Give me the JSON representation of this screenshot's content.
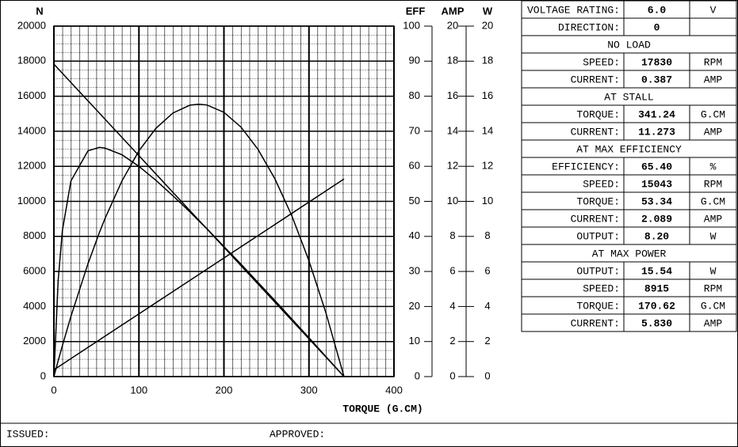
{
  "chart_data": {
    "type": "line",
    "x_label": "TORQUE (G.CM)",
    "y_label": "N",
    "y2_label": "EFF",
    "y3_label": "AMP",
    "y4_label": "W",
    "x": [
      0,
      5,
      10,
      20,
      40,
      53.34,
      60,
      80,
      100,
      120,
      140,
      160,
      170.62,
      180,
      200,
      220,
      240,
      260,
      280,
      300,
      320,
      341.24
    ],
    "xlim": [
      0,
      400
    ],
    "xticks": [
      0,
      100,
      200,
      300,
      400
    ],
    "ylim": [
      0,
      20000
    ],
    "yticks": [
      0,
      2000,
      4000,
      6000,
      8000,
      10000,
      12000,
      14000,
      16000,
      18000,
      20000
    ],
    "y2lim": [
      0,
      100
    ],
    "y2ticks": [
      0,
      10,
      20,
      30,
      40,
      50,
      60,
      70,
      80,
      90,
      100
    ],
    "y3lim": [
      0,
      20
    ],
    "y3ticks": [
      0,
      2,
      4,
      6,
      8,
      10,
      12,
      14,
      16,
      18,
      20
    ],
    "y4lim": [
      0,
      20
    ],
    "y4ticks": [
      0,
      2,
      4,
      6,
      8,
      10,
      12,
      14,
      16,
      18,
      20
    ],
    "grid": true,
    "series": [
      {
        "axis": "y",
        "color": "#000000",
        "values": [
          17830,
          17569,
          17307,
          16785,
          15740,
          15043,
          14695,
          13650,
          12605,
          11560,
          10515,
          9470,
          8915,
          8425,
          7380,
          6335,
          5290,
          4245,
          3200,
          2155,
          1110,
          0
        ]
      },
      {
        "axis": "y2",
        "color": "#000000",
        "values": [
          0,
          27.4,
          41.7,
          55.8,
          64.4,
          65.4,
          65.2,
          63.3,
          60.0,
          56.0,
          51.6,
          47.0,
          44.4,
          42.2,
          37.1,
          32.1,
          26.9,
          21.7,
          16.4,
          11.1,
          5.7,
          0
        ]
      },
      {
        "axis": "y3",
        "color": "#000000",
        "values": [
          0.387,
          0.547,
          0.706,
          1.025,
          1.663,
          2.089,
          2.301,
          2.939,
          3.577,
          4.215,
          4.853,
          5.491,
          5.83,
          6.129,
          6.767,
          7.405,
          8.043,
          8.682,
          9.32,
          9.958,
          10.596,
          11.273
        ]
      },
      {
        "axis": "y4",
        "color": "#000000",
        "values": [
          0,
          0.9,
          1.77,
          3.43,
          6.43,
          8.2,
          9.01,
          11.16,
          12.88,
          14.17,
          15.04,
          15.49,
          15.54,
          15.5,
          15.08,
          14.24,
          12.97,
          11.28,
          9.16,
          6.61,
          3.63,
          0
        ]
      }
    ]
  },
  "table": {
    "rows": [
      [
        "VOLTAGE RATING:",
        "6.0",
        "V"
      ],
      [
        "DIRECTION:",
        "0"
      ],
      [
        "NO LOAD"
      ],
      [
        "SPEED:",
        "17830",
        "RPM"
      ],
      [
        "CURRENT:",
        "0.387",
        "AMP"
      ],
      [
        "AT STALL"
      ],
      [
        "TORQUE:",
        "341.24",
        "G.CM"
      ],
      [
        "CURRENT:",
        "11.273",
        "AMP"
      ],
      [
        "AT MAX EFFICIENCY"
      ],
      [
        "EFFICIENCY:",
        "65.40",
        "%"
      ],
      [
        "SPEED:",
        "15043",
        "RPM"
      ],
      [
        "TORQUE:",
        "53.34",
        "G.CM"
      ],
      [
        "CURRENT:",
        "2.089",
        "AMP"
      ],
      [
        "OUTPUT:",
        "8.20",
        "W"
      ],
      [
        "AT MAX POWER"
      ],
      [
        "OUTPUT:",
        "15.54",
        "W"
      ],
      [
        "SPEED:",
        "8915",
        "RPM"
      ],
      [
        "TORQUE:",
        "170.62",
        "G.CM"
      ],
      [
        "CURRENT:",
        "5.830",
        "AMP"
      ]
    ]
  },
  "footer": {
    "issued": "ISSUED:",
    "approved": "APPROVED:"
  }
}
